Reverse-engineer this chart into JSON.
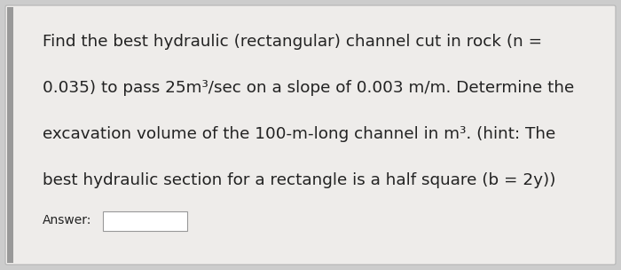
{
  "line1": "Find the best hydraulic (rectangular) channel cut in rock (n =",
  "line2": "0.035) to pass 25m³/sec on a slope of 0.003 m/m. Determine the",
  "line3": "excavation volume of the 100-m-long channel in m³. (hint: The",
  "line4": "best hydraulic section for a rectangle is a half square (b = 2y))",
  "answer_label": "Answer:",
  "bg_color": "#cccccc",
  "card_color": "#eeecea",
  "text_color": "#222222",
  "font_size": 13.2,
  "answer_font_size": 10.0,
  "left_bar_color": "#999999",
  "card_edge_color": "#bbbbbb"
}
